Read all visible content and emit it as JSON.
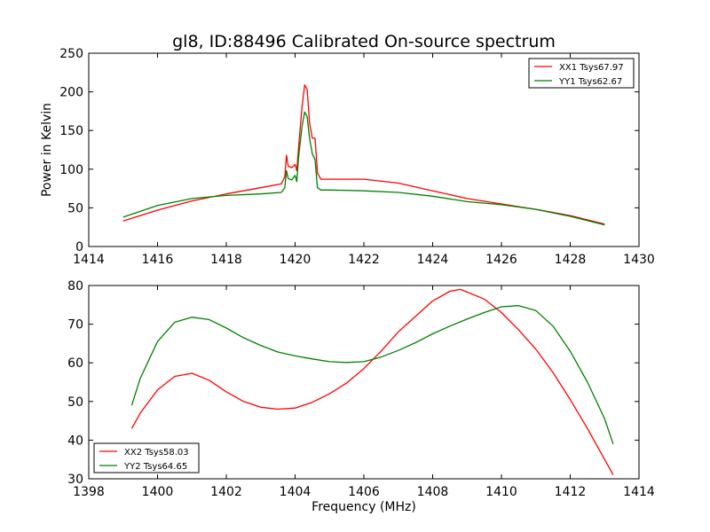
{
  "figure": {
    "title": "gl8, ID:88496 Calibrated On-source spectrum",
    "background": "#ffffff"
  },
  "chart_data": [
    {
      "type": "line",
      "title": "gl8, ID:88496 Calibrated On-source spectrum",
      "xlabel": "",
      "ylabel": "Power in Kelvin",
      "xlim": [
        1414,
        1430
      ],
      "ylim": [
        0,
        250
      ],
      "xticks": [
        1414,
        1416,
        1418,
        1420,
        1422,
        1424,
        1426,
        1428,
        1430
      ],
      "yticks": [
        0,
        50,
        100,
        150,
        200,
        250
      ],
      "grid": false,
      "legend": {
        "position": "top-right",
        "entries": [
          "XX1 Tsys67.97",
          "YY1 Tsys62.67"
        ]
      },
      "series": [
        {
          "name": "XX1 Tsys67.97",
          "color": "#ff0000",
          "x": [
            1415.0,
            1416.0,
            1417.0,
            1418.0,
            1419.0,
            1419.6,
            1419.7,
            1419.75,
            1419.8,
            1419.9,
            1420.0,
            1420.05,
            1420.1,
            1420.2,
            1420.28,
            1420.35,
            1420.42,
            1420.5,
            1420.58,
            1420.65,
            1420.75,
            1421.0,
            1422.0,
            1423.0,
            1424.0,
            1425.0,
            1426.0,
            1427.0,
            1428.0,
            1429.0
          ],
          "y": [
            33,
            47,
            59,
            68,
            76,
            81,
            90,
            118,
            104,
            102,
            106,
            98,
            128,
            180,
            209,
            203,
            160,
            140,
            140,
            95,
            87,
            87,
            87,
            82,
            72,
            62,
            55,
            48,
            40,
            29
          ]
        },
        {
          "name": "YY1 Tsys62.67",
          "color": "#008000",
          "x": [
            1415.0,
            1416.0,
            1417.0,
            1418.0,
            1419.0,
            1419.6,
            1419.7,
            1419.75,
            1419.8,
            1419.9,
            1420.0,
            1420.05,
            1420.1,
            1420.2,
            1420.28,
            1420.35,
            1420.42,
            1420.5,
            1420.58,
            1420.65,
            1420.75,
            1421.0,
            1422.0,
            1423.0,
            1424.0,
            1425.0,
            1426.0,
            1427.0,
            1428.0,
            1429.0
          ],
          "y": [
            38,
            53,
            62,
            66,
            68,
            70,
            76,
            98,
            88,
            86,
            92,
            84,
            115,
            155,
            174,
            168,
            140,
            120,
            112,
            76,
            73,
            73,
            72,
            70,
            65,
            58,
            54,
            48,
            39,
            28
          ]
        }
      ]
    },
    {
      "type": "line",
      "title": "",
      "xlabel": "Frequency (MHz)",
      "ylabel": "",
      "xlim": [
        1398,
        1414
      ],
      "ylim": [
        30,
        80
      ],
      "xticks": [
        1398,
        1400,
        1402,
        1404,
        1406,
        1408,
        1410,
        1412,
        1414
      ],
      "yticks": [
        30,
        40,
        50,
        60,
        70,
        80
      ],
      "grid": false,
      "legend": {
        "position": "bottom-left",
        "entries": [
          "XX2 Tsys58.03",
          "YY2 Tsys64.65"
        ]
      },
      "series": [
        {
          "name": "XX2 Tsys58.03",
          "color": "#ff0000",
          "x": [
            1399.25,
            1399.5,
            1400.0,
            1400.5,
            1401.0,
            1401.5,
            1402.0,
            1402.5,
            1403.0,
            1403.5,
            1404.0,
            1404.5,
            1405.0,
            1405.5,
            1406.0,
            1406.5,
            1407.0,
            1407.5,
            1408.0,
            1408.5,
            1408.8,
            1409.0,
            1409.5,
            1410.0,
            1410.5,
            1411.0,
            1411.5,
            1412.0,
            1412.5,
            1413.0,
            1413.25
          ],
          "y": [
            43,
            47,
            53,
            56.5,
            57.3,
            55.5,
            52.5,
            50,
            48.5,
            48,
            48.3,
            49.8,
            52,
            54.8,
            58.5,
            63,
            68,
            72,
            76,
            78.5,
            79,
            78.3,
            76.5,
            73,
            68.5,
            63.5,
            57.5,
            50.5,
            43,
            35,
            31
          ]
        },
        {
          "name": "YY2 Tsys64.65",
          "color": "#008000",
          "x": [
            1399.25,
            1399.5,
            1400.0,
            1400.5,
            1401.0,
            1401.5,
            1402.0,
            1402.5,
            1403.0,
            1403.5,
            1404.0,
            1404.5,
            1405.0,
            1405.5,
            1406.0,
            1406.5,
            1407.0,
            1407.5,
            1408.0,
            1408.5,
            1409.0,
            1409.5,
            1410.0,
            1410.5,
            1411.0,
            1411.5,
            1412.0,
            1412.5,
            1413.0,
            1413.25
          ],
          "y": [
            49,
            56,
            65.5,
            70.5,
            71.8,
            71.2,
            69,
            66.5,
            64.5,
            62.8,
            61.8,
            61,
            60.3,
            60.1,
            60.3,
            61.5,
            63.2,
            65.2,
            67.5,
            69.5,
            71.3,
            73,
            74.5,
            74.8,
            73.5,
            69.5,
            63,
            55,
            45.5,
            39
          ]
        }
      ]
    }
  ]
}
